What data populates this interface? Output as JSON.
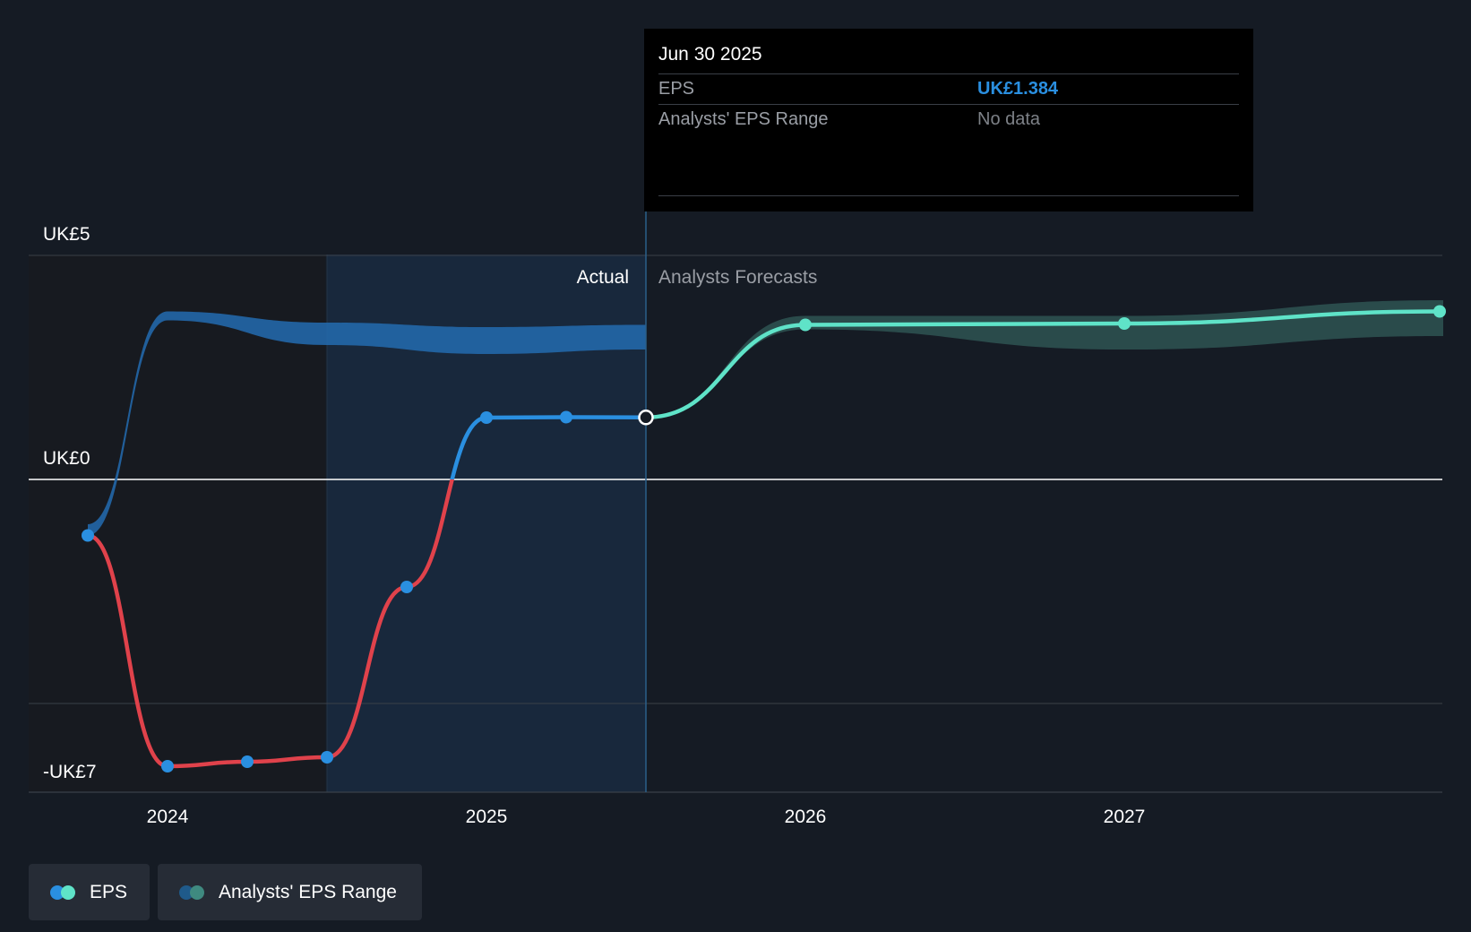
{
  "tooltip": {
    "date": "Jun 30 2025",
    "rows": [
      {
        "label": "EPS",
        "value": "UK£1.384"
      },
      {
        "label": "Analysts' EPS Range",
        "value": "No data"
      }
    ]
  },
  "legend": {
    "eps_label": "EPS",
    "range_label": "Analysts' EPS Range"
  },
  "colors": {
    "background": "#151b24",
    "eps_negative": "#e0424b",
    "eps_positive": "#2a8fe0",
    "forecast": "#5fe3c8",
    "past_band": "#2267a8",
    "forecast_band": "#2b4e4e"
  },
  "chart_data": {
    "type": "line",
    "currency": "UK£",
    "y_axis": {
      "min": -7,
      "max": 5,
      "labeled_ticks": [
        {
          "value": 5,
          "label": "UK£5"
        },
        {
          "value": 0,
          "label": "UK£0"
        },
        {
          "value": -7,
          "label": "-UK£7"
        }
      ],
      "gridlines": [
        5,
        0,
        -5
      ]
    },
    "x_axis": {
      "min": 2023.57,
      "max": 2027.99,
      "ticks": [
        {
          "value": 2024.0,
          "label": "2024"
        },
        {
          "value": 2025.0,
          "label": "2025"
        },
        {
          "value": 2026.0,
          "label": "2026"
        },
        {
          "value": 2027.0,
          "label": "2027"
        }
      ]
    },
    "annotations": {
      "actual": "Actual",
      "forecast": "Analysts Forecasts",
      "divider_x": 2025.5,
      "highlight_from": 2024.5,
      "highlight_to": 2025.5
    },
    "eps_actual": {
      "name": "EPS",
      "x": [
        2023.75,
        2024.0,
        2024.25,
        2024.5,
        2024.75,
        2025.0,
        2025.25,
        2025.5
      ],
      "y": [
        -1.25,
        -6.4,
        -6.3,
        -6.2,
        -2.4,
        1.38,
        1.39,
        1.384
      ]
    },
    "eps_forecast": {
      "name": "EPS forecast",
      "x": [
        2025.5,
        2026.0,
        2027.0,
        2028.0
      ],
      "y": [
        1.384,
        3.45,
        3.48,
        3.75
      ]
    },
    "analysts_range_past": {
      "name": "Analysts' EPS Range",
      "x": [
        2023.75,
        2024.0,
        2024.5,
        2025.0,
        2025.5
      ],
      "upper": [
        -1.0,
        3.75,
        3.5,
        3.4,
        3.45
      ],
      "lower": [
        -1.25,
        3.55,
        3.0,
        2.8,
        2.9
      ]
    },
    "analysts_range_forecast": {
      "name": "Analysts' EPS Range",
      "x": [
        2025.5,
        2026.0,
        2027.0,
        2028.0
      ],
      "upper": [
        1.384,
        3.65,
        3.65,
        4.0
      ],
      "lower": [
        1.384,
        3.35,
        2.9,
        3.2
      ]
    }
  }
}
